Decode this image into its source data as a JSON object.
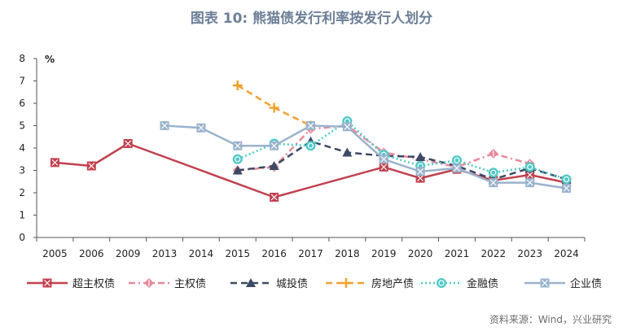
{
  "title": "图表 10: 熊猫债发行利率按发行人划分",
  "source": "资料来源：Wind，兴业研究",
  "chart_data": {
    "type": "line",
    "categories": [
      "2005",
      "2006",
      "2009",
      "2013",
      "2014",
      "2015",
      "2016",
      "2017",
      "2018",
      "2019",
      "2020",
      "2021",
      "2022",
      "2023",
      "2024"
    ],
    "ylabel": "%",
    "ylim": [
      0,
      8
    ],
    "yticks": [
      0,
      1,
      2,
      3,
      4,
      5,
      6,
      7,
      8
    ],
    "grid": false,
    "legend_position": "bottom",
    "series": [
      {
        "name": "超主权债",
        "color": "#c0414f",
        "marker": "square-x",
        "dash": "solid",
        "values": [
          3.35,
          3.2,
          4.2,
          null,
          null,
          null,
          1.8,
          null,
          null,
          3.15,
          2.65,
          3.05,
          2.55,
          2.8,
          2.45
        ]
      },
      {
        "name": "主权债",
        "color": "#e8889a",
        "marker": "diamond",
        "dash": "dashdot",
        "values": [
          null,
          null,
          null,
          null,
          null,
          3.0,
          3.15,
          4.85,
          5.0,
          3.8,
          3.5,
          3.15,
          3.75,
          3.3,
          null
        ]
      },
      {
        "name": "城投债",
        "color": "#3b4a64",
        "marker": "triangle",
        "dash": "dash",
        "values": [
          null,
          null,
          null,
          null,
          null,
          3.0,
          3.2,
          4.3,
          3.8,
          3.65,
          3.6,
          3.2,
          2.6,
          3.1,
          2.6
        ]
      },
      {
        "name": "房地产债",
        "color": "#f0a22e",
        "marker": "plus",
        "dash": "dash",
        "values": [
          null,
          null,
          null,
          null,
          null,
          6.8,
          5.8,
          5.0,
          null,
          null,
          null,
          null,
          null,
          null,
          null
        ]
      },
      {
        "name": "金融债",
        "color": "#4fc9c6",
        "marker": "circle",
        "dash": "dot",
        "values": [
          null,
          null,
          null,
          null,
          null,
          3.5,
          4.2,
          4.1,
          5.2,
          3.7,
          3.2,
          3.45,
          2.9,
          3.15,
          2.6
        ]
      },
      {
        "name": "企业债",
        "color": "#9ab3cc",
        "marker": "square-x",
        "dash": "solid",
        "values": [
          null,
          null,
          null,
          5.0,
          4.9,
          4.1,
          4.1,
          5.0,
          4.95,
          3.5,
          2.95,
          3.1,
          2.45,
          2.45,
          2.2
        ]
      }
    ]
  }
}
